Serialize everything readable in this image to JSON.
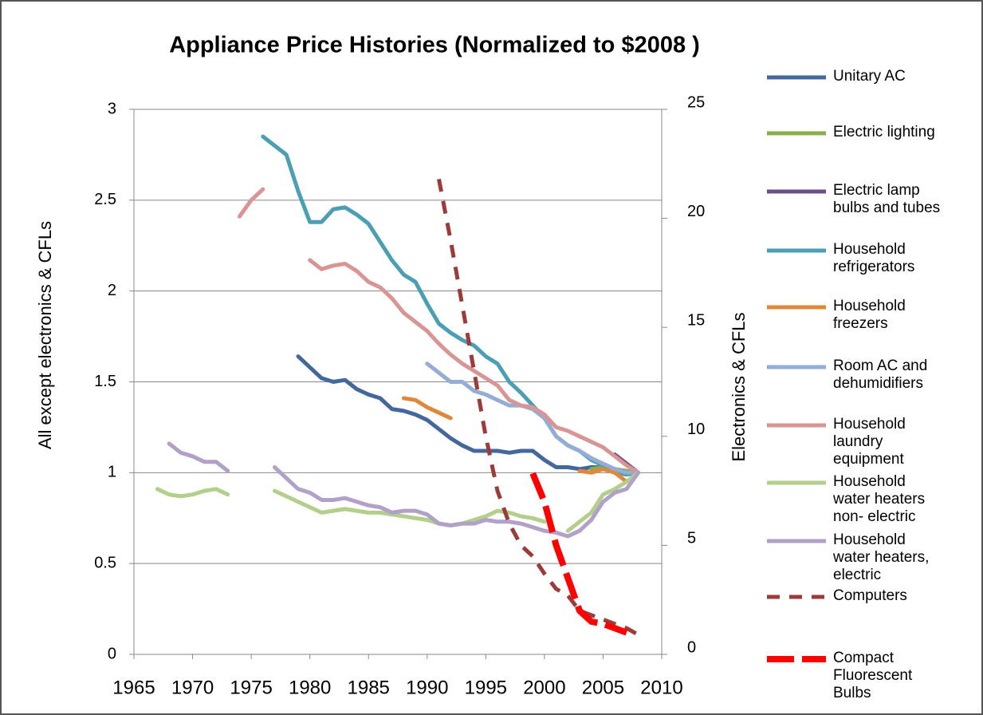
{
  "chart_data": {
    "type": "line",
    "title": "Appliance Price Histories (Normalized to $2008 )",
    "y_label": "All except electronics & CFLs",
    "y2_label": "Electronics & CFLs",
    "x": [
      1967,
      1968,
      1969,
      1970,
      1971,
      1972,
      1973,
      1974,
      1975,
      1976,
      1977,
      1978,
      1979,
      1980,
      1981,
      1982,
      1983,
      1984,
      1985,
      1986,
      1987,
      1988,
      1989,
      1990,
      1991,
      1992,
      1993,
      1994,
      1995,
      1996,
      1997,
      1998,
      1999,
      2000,
      2001,
      2002,
      2003,
      2004,
      2005,
      2006,
      2007,
      2008
    ],
    "xlim": [
      1965,
      2010
    ],
    "xticks": [
      1965,
      1970,
      1975,
      1980,
      1985,
      1990,
      1995,
      2000,
      2005,
      2010
    ],
    "ylim": [
      0,
      3
    ],
    "yticks": [
      0,
      0.5,
      1,
      1.5,
      2,
      2.5,
      3
    ],
    "y2lim": [
      0,
      25
    ],
    "y2ticks": [
      0,
      5,
      10,
      15,
      20,
      25
    ],
    "grid": true,
    "legend": "right",
    "series": [
      {
        "name": "Unitary AC",
        "color": "#44679e",
        "values": [
          null,
          null,
          null,
          null,
          null,
          null,
          null,
          null,
          null,
          null,
          null,
          null,
          1.64,
          1.58,
          1.52,
          1.5,
          1.51,
          1.46,
          1.43,
          1.41,
          1.35,
          1.34,
          1.32,
          1.29,
          1.24,
          1.19,
          1.15,
          1.12,
          1.12,
          1.12,
          1.11,
          1.12,
          1.12,
          1.07,
          1.03,
          1.03,
          1.02,
          1.03,
          1.03,
          1.02,
          1.0,
          1.0
        ]
      },
      {
        "name": "Electric lighting",
        "color": "#8aac4a",
        "values": [
          null,
          null,
          null,
          null,
          null,
          null,
          null,
          null,
          null,
          null,
          null,
          null,
          null,
          null,
          null,
          null,
          null,
          null,
          null,
          null,
          null,
          null,
          null,
          null,
          null,
          null,
          null,
          null,
          null,
          null,
          null,
          null,
          null,
          null,
          null,
          null,
          null,
          1.02,
          1.03,
          1.02,
          1.01,
          1.0
        ]
      },
      {
        "name": "Electric lamp bulbs and tubes",
        "color": "#6a4f8c",
        "values": [
          null,
          null,
          null,
          null,
          null,
          null,
          null,
          null,
          null,
          null,
          null,
          null,
          null,
          null,
          null,
          null,
          null,
          null,
          null,
          null,
          null,
          null,
          null,
          null,
          null,
          null,
          null,
          null,
          null,
          null,
          null,
          null,
          null,
          null,
          null,
          null,
          null,
          null,
          null,
          1.1,
          1.05,
          1.0
        ]
      },
      {
        "name": "Household refrigerators",
        "color": "#4b9fb5",
        "values": [
          null,
          null,
          null,
          null,
          null,
          null,
          null,
          null,
          null,
          2.85,
          2.8,
          2.75,
          2.55,
          2.38,
          2.38,
          2.45,
          2.46,
          2.42,
          2.37,
          2.27,
          2.17,
          2.09,
          2.05,
          1.93,
          1.82,
          1.77,
          1.73,
          1.7,
          1.64,
          1.6,
          1.5,
          1.44,
          1.37,
          1.3,
          1.2,
          1.15,
          1.12,
          1.07,
          1.04,
          1.0,
          0.99,
          1.0
        ]
      },
      {
        "name": "Household freezers",
        "color": "#e0883a",
        "values": [
          null,
          null,
          null,
          null,
          null,
          null,
          null,
          null,
          null,
          null,
          null,
          null,
          null,
          null,
          null,
          null,
          null,
          null,
          null,
          null,
          null,
          1.41,
          1.4,
          1.36,
          1.33,
          1.3,
          null,
          null,
          null,
          null,
          null,
          null,
          null,
          null,
          null,
          null,
          1.01,
          1.0,
          1.02,
          1.0,
          0.95,
          1.0
        ]
      },
      {
        "name": "Room AC and dehumidifiers",
        "color": "#93add6",
        "values": [
          null,
          null,
          null,
          null,
          null,
          null,
          null,
          null,
          null,
          null,
          null,
          null,
          null,
          null,
          null,
          null,
          null,
          null,
          null,
          null,
          null,
          null,
          null,
          1.6,
          1.55,
          1.5,
          1.5,
          1.45,
          1.43,
          1.4,
          1.37,
          1.37,
          1.35,
          1.3,
          1.2,
          1.15,
          1.12,
          1.08,
          1.05,
          1.02,
          1.0,
          1.0
        ]
      },
      {
        "name": "Household laundry equipment",
        "color": "#d99593",
        "values": [
          null,
          null,
          null,
          null,
          null,
          null,
          null,
          2.41,
          2.5,
          2.56,
          null,
          null,
          null,
          2.17,
          2.12,
          2.14,
          2.15,
          2.11,
          2.05,
          2.02,
          1.96,
          1.88,
          1.83,
          1.78,
          1.71,
          1.65,
          1.6,
          1.56,
          1.52,
          1.48,
          1.4,
          1.37,
          1.36,
          1.32,
          1.25,
          1.23,
          1.2,
          1.17,
          1.14,
          1.09,
          1.04,
          1.0
        ]
      },
      {
        "name": "Household water heaters non- electric",
        "color": "#b3cf8b",
        "values": [
          0.91,
          0.88,
          0.87,
          0.88,
          0.9,
          0.91,
          0.88,
          null,
          null,
          null,
          0.9,
          0.87,
          0.84,
          0.81,
          0.78,
          0.79,
          0.8,
          0.79,
          0.78,
          0.78,
          0.77,
          0.76,
          0.75,
          0.74,
          0.72,
          0.71,
          0.72,
          0.74,
          0.76,
          0.79,
          0.78,
          0.76,
          0.75,
          0.73,
          null,
          0.68,
          0.73,
          0.78,
          0.88,
          0.91,
          0.95,
          1.0
        ]
      },
      {
        "name": "Household water heaters, electric",
        "color": "#b1a0c7",
        "values": [
          null,
          1.16,
          1.11,
          1.09,
          1.06,
          1.06,
          1.01,
          null,
          null,
          null,
          1.03,
          0.97,
          0.91,
          0.89,
          0.85,
          0.85,
          0.86,
          0.84,
          0.82,
          0.81,
          0.78,
          0.79,
          0.79,
          0.77,
          0.72,
          0.71,
          0.72,
          0.72,
          0.74,
          0.73,
          0.73,
          0.72,
          0.7,
          0.68,
          0.67,
          0.65,
          0.68,
          0.74,
          0.84,
          0.89,
          0.91,
          1.0
        ]
      },
      {
        "name": "Computers",
        "color": "#9c3b39",
        "axis": "y2",
        "style": "dashed",
        "values": [
          null,
          null,
          null,
          null,
          null,
          null,
          null,
          null,
          null,
          null,
          null,
          null,
          null,
          null,
          null,
          null,
          null,
          null,
          null,
          null,
          null,
          null,
          null,
          null,
          21.8,
          19,
          16,
          13,
          10,
          7.5,
          6,
          5,
          4.5,
          3.7,
          3,
          2.7,
          2,
          1.8,
          1.6,
          1.4,
          1.2,
          0.9
        ]
      },
      {
        "name": "Compact Fluorescent Bulbs",
        "color": "#ff0000",
        "axis": "y2",
        "style": "long-dashed",
        "values": [
          null,
          null,
          null,
          null,
          null,
          null,
          null,
          null,
          null,
          null,
          null,
          null,
          null,
          null,
          null,
          null,
          null,
          null,
          null,
          null,
          null,
          null,
          null,
          null,
          null,
          null,
          null,
          null,
          null,
          null,
          null,
          null,
          8.3,
          7,
          5,
          3.5,
          2,
          1.5,
          1.4,
          1.2,
          1.0,
          null
        ]
      }
    ]
  }
}
